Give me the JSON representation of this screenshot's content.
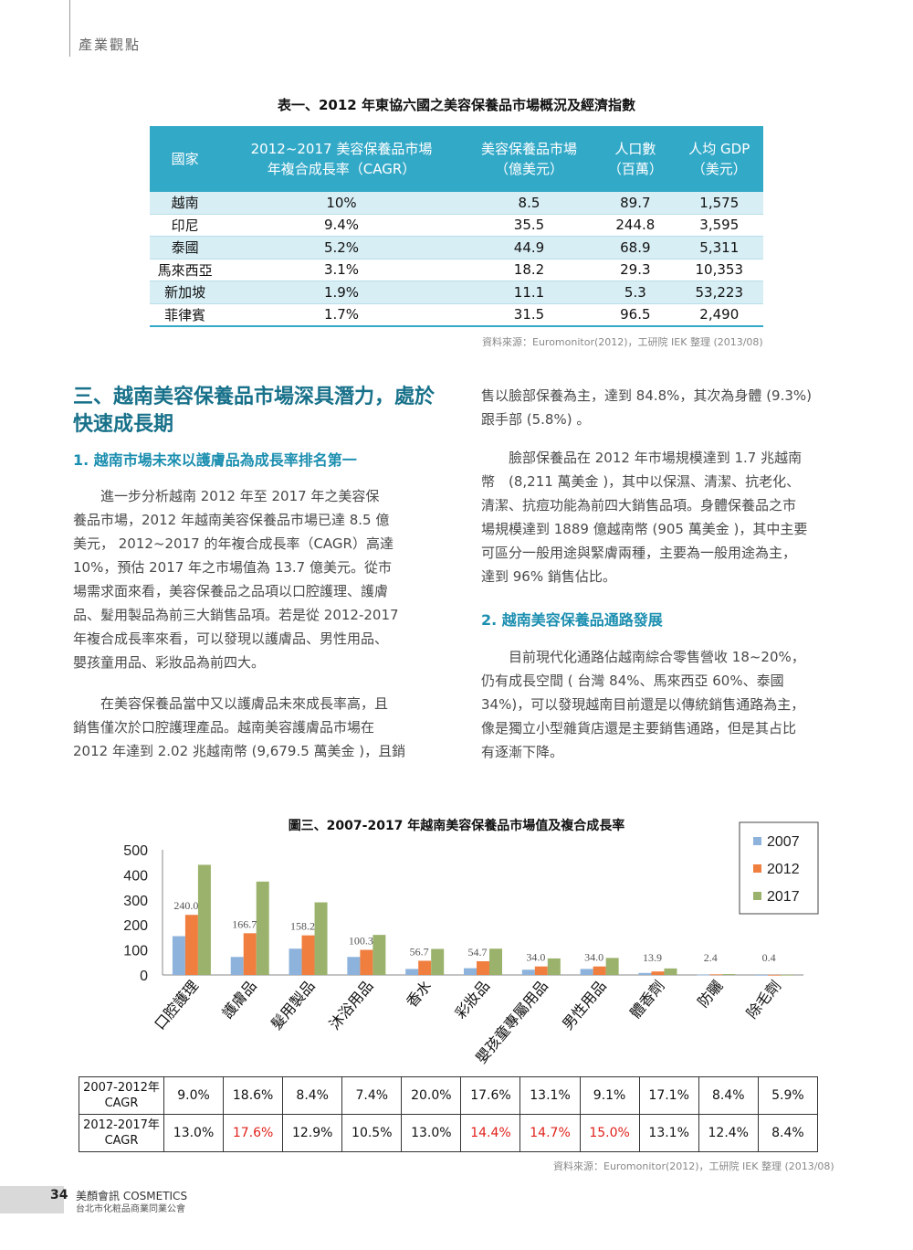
{
  "header": {
    "section_tag": "產業觀點"
  },
  "table1": {
    "title": "表一、2012 年東協六國之美容保養品市場概況及經濟指數",
    "headers": [
      [
        "國家"
      ],
      [
        "2012~2017 美容保養品市場",
        "年複合成長率（CAGR）"
      ],
      [
        "美容保養品市場",
        "（億美元）"
      ],
      [
        "人口數",
        "（百萬）"
      ],
      [
        "人均 GDP",
        "（美元）"
      ]
    ],
    "rows": [
      [
        "越南",
        "10%",
        "8.5",
        "89.7",
        "1,575"
      ],
      [
        "印尼",
        "9.4%",
        "35.5",
        "244.8",
        "3,595"
      ],
      [
        "泰國",
        "5.2%",
        "44.9",
        "68.9",
        "5,311"
      ],
      [
        "馬來西亞",
        "3.1%",
        "18.2",
        "29.3",
        "10,353"
      ],
      [
        "新加坡",
        "1.9%",
        "11.1",
        "5.3",
        "53,223"
      ],
      [
        "菲律賓",
        "1.7%",
        "31.5",
        "96.5",
        "2,490"
      ]
    ],
    "source": "資料來源：Euromonitor(2012)，工研院 IEK 整理 (2013/08)"
  },
  "article": {
    "heading_lines": [
      "三、越南美容保養品市場深具潛力，處於",
      "快速成長期"
    ],
    "sub1": "1. 越南市場未來以護膚品為成長率排名第一",
    "p1": [
      "　　進一步分析越南 2012 年至 2017 年之美容保",
      "養品市場，2012 年越南美容保養品市場已達 8.5 億",
      "美元， 2012~2017 的年複合成長率（CAGR）高達",
      "10%，預估 2017 年之市場值為 13.7 億美元。從市",
      "場需求面來看，美容保養品之品項以口腔護理、護膚",
      "品、髮用製品為前三大銷售品項。若是從 2012-2017",
      "年複合成長率來看，可以發現以護膚品、男性用品、",
      "嬰孩童用品、彩妝品為前四大。"
    ],
    "p2": [
      "　　在美容保養品當中又以護膚品未來成長率高，且",
      "銷售僅次於口腔護理產品。越南美容護膚品市場在",
      "2012 年達到 2.02 兆越南幣 (9,679.5 萬美金 )，且銷"
    ],
    "p3": [
      "售以臉部保養為主，達到 84.8%，其次為身體 (9.3%)",
      "跟手部 (5.8%) 。"
    ],
    "p4": [
      "　　臉部保養品在 2012 年市場規模達到 1.7 兆越南",
      "幣　(8,211 萬美金 )，其中以保濕、清潔、抗老化、",
      "清潔、抗痘功能為前四大銷售品項。身體保養品之市",
      "場規模達到 1889 億越南幣 (905 萬美金 )，其中主要",
      "可區分一般用途與緊膚兩種，主要為一般用途為主，",
      "達到 96% 銷售佔比。"
    ],
    "sub2": "2. 越南美容保養品通路發展",
    "p5": [
      "　　目前現代化通路佔越南綜合零售營收 18~20%，",
      "仍有成長空間 ( 台灣 84%、馬來西亞 60%、泰國",
      "34%)，可以發現越南目前還是以傳統銷售通路為主，",
      "像是獨立小型雜貨店還是主要銷售通路，但是其占比",
      "有逐漸下降。"
    ]
  },
  "chart_data": {
    "type": "bar",
    "title": "圖三、2007-2017 年越南美容保養品市場值及複合成長率",
    "categories": [
      "口腔護理",
      "護膚品",
      "髮用製品",
      "沐浴用品",
      "香水",
      "彩妝品",
      "嬰孩童專屬用品",
      "男性用品",
      "體香劑",
      "防曬",
      "除毛劑"
    ],
    "series": [
      {
        "name": "2007",
        "color": "#8db3dc",
        "values": [
          155,
          72,
          105,
          72,
          24,
          27,
          21,
          24,
          8,
          1.2,
          0.3
        ]
      },
      {
        "name": "2012",
        "color": "#ef7e3f",
        "values": [
          240.0,
          166.7,
          158.2,
          100.3,
          56.7,
          54.7,
          34.0,
          34.0,
          13.9,
          2.4,
          0.4
        ]
      },
      {
        "name": "2017",
        "color": "#9bb26c",
        "values": [
          440,
          373,
          290,
          160,
          104,
          105,
          66,
          68,
          26,
          3.5,
          0.6
        ]
      }
    ],
    "data_labels": [
      "240.0",
      "166.7",
      "158.2",
      "100.3",
      "56.7",
      "54.7",
      "34.0",
      "34.0",
      "13.9",
      "2.4",
      "0.4"
    ],
    "yticks": [
      "500",
      "400",
      "300",
      "200",
      "100",
      "0"
    ],
    "ylim": [
      0,
      500
    ],
    "grid": false,
    "legend_position": "top-right"
  },
  "table2": {
    "rows": [
      {
        "label": [
          "2007-2012年",
          "CAGR"
        ],
        "values": [
          "9.0%",
          "18.6%",
          "8.4%",
          "7.4%",
          "20.0%",
          "17.6%",
          "13.1%",
          "9.1%",
          "17.1%",
          "8.4%",
          "5.9%"
        ],
        "red": []
      },
      {
        "label": [
          "2012-2017年",
          "CAGR"
        ],
        "values": [
          "13.0%",
          "17.6%",
          "12.9%",
          "10.5%",
          "13.0%",
          "14.4%",
          "14.7%",
          "15.0%",
          "13.1%",
          "12.4%",
          "8.4%"
        ],
        "red": [
          1,
          5,
          6,
          7
        ]
      }
    ],
    "source": "資料來源：Euromonitor(2012)，工研院 IEK 整理 (2013/08)"
  },
  "footer": {
    "page_number": "34",
    "magazine": "美顏會訊 COSMETICS",
    "publisher": "台北市化粧品商業同業公會"
  }
}
